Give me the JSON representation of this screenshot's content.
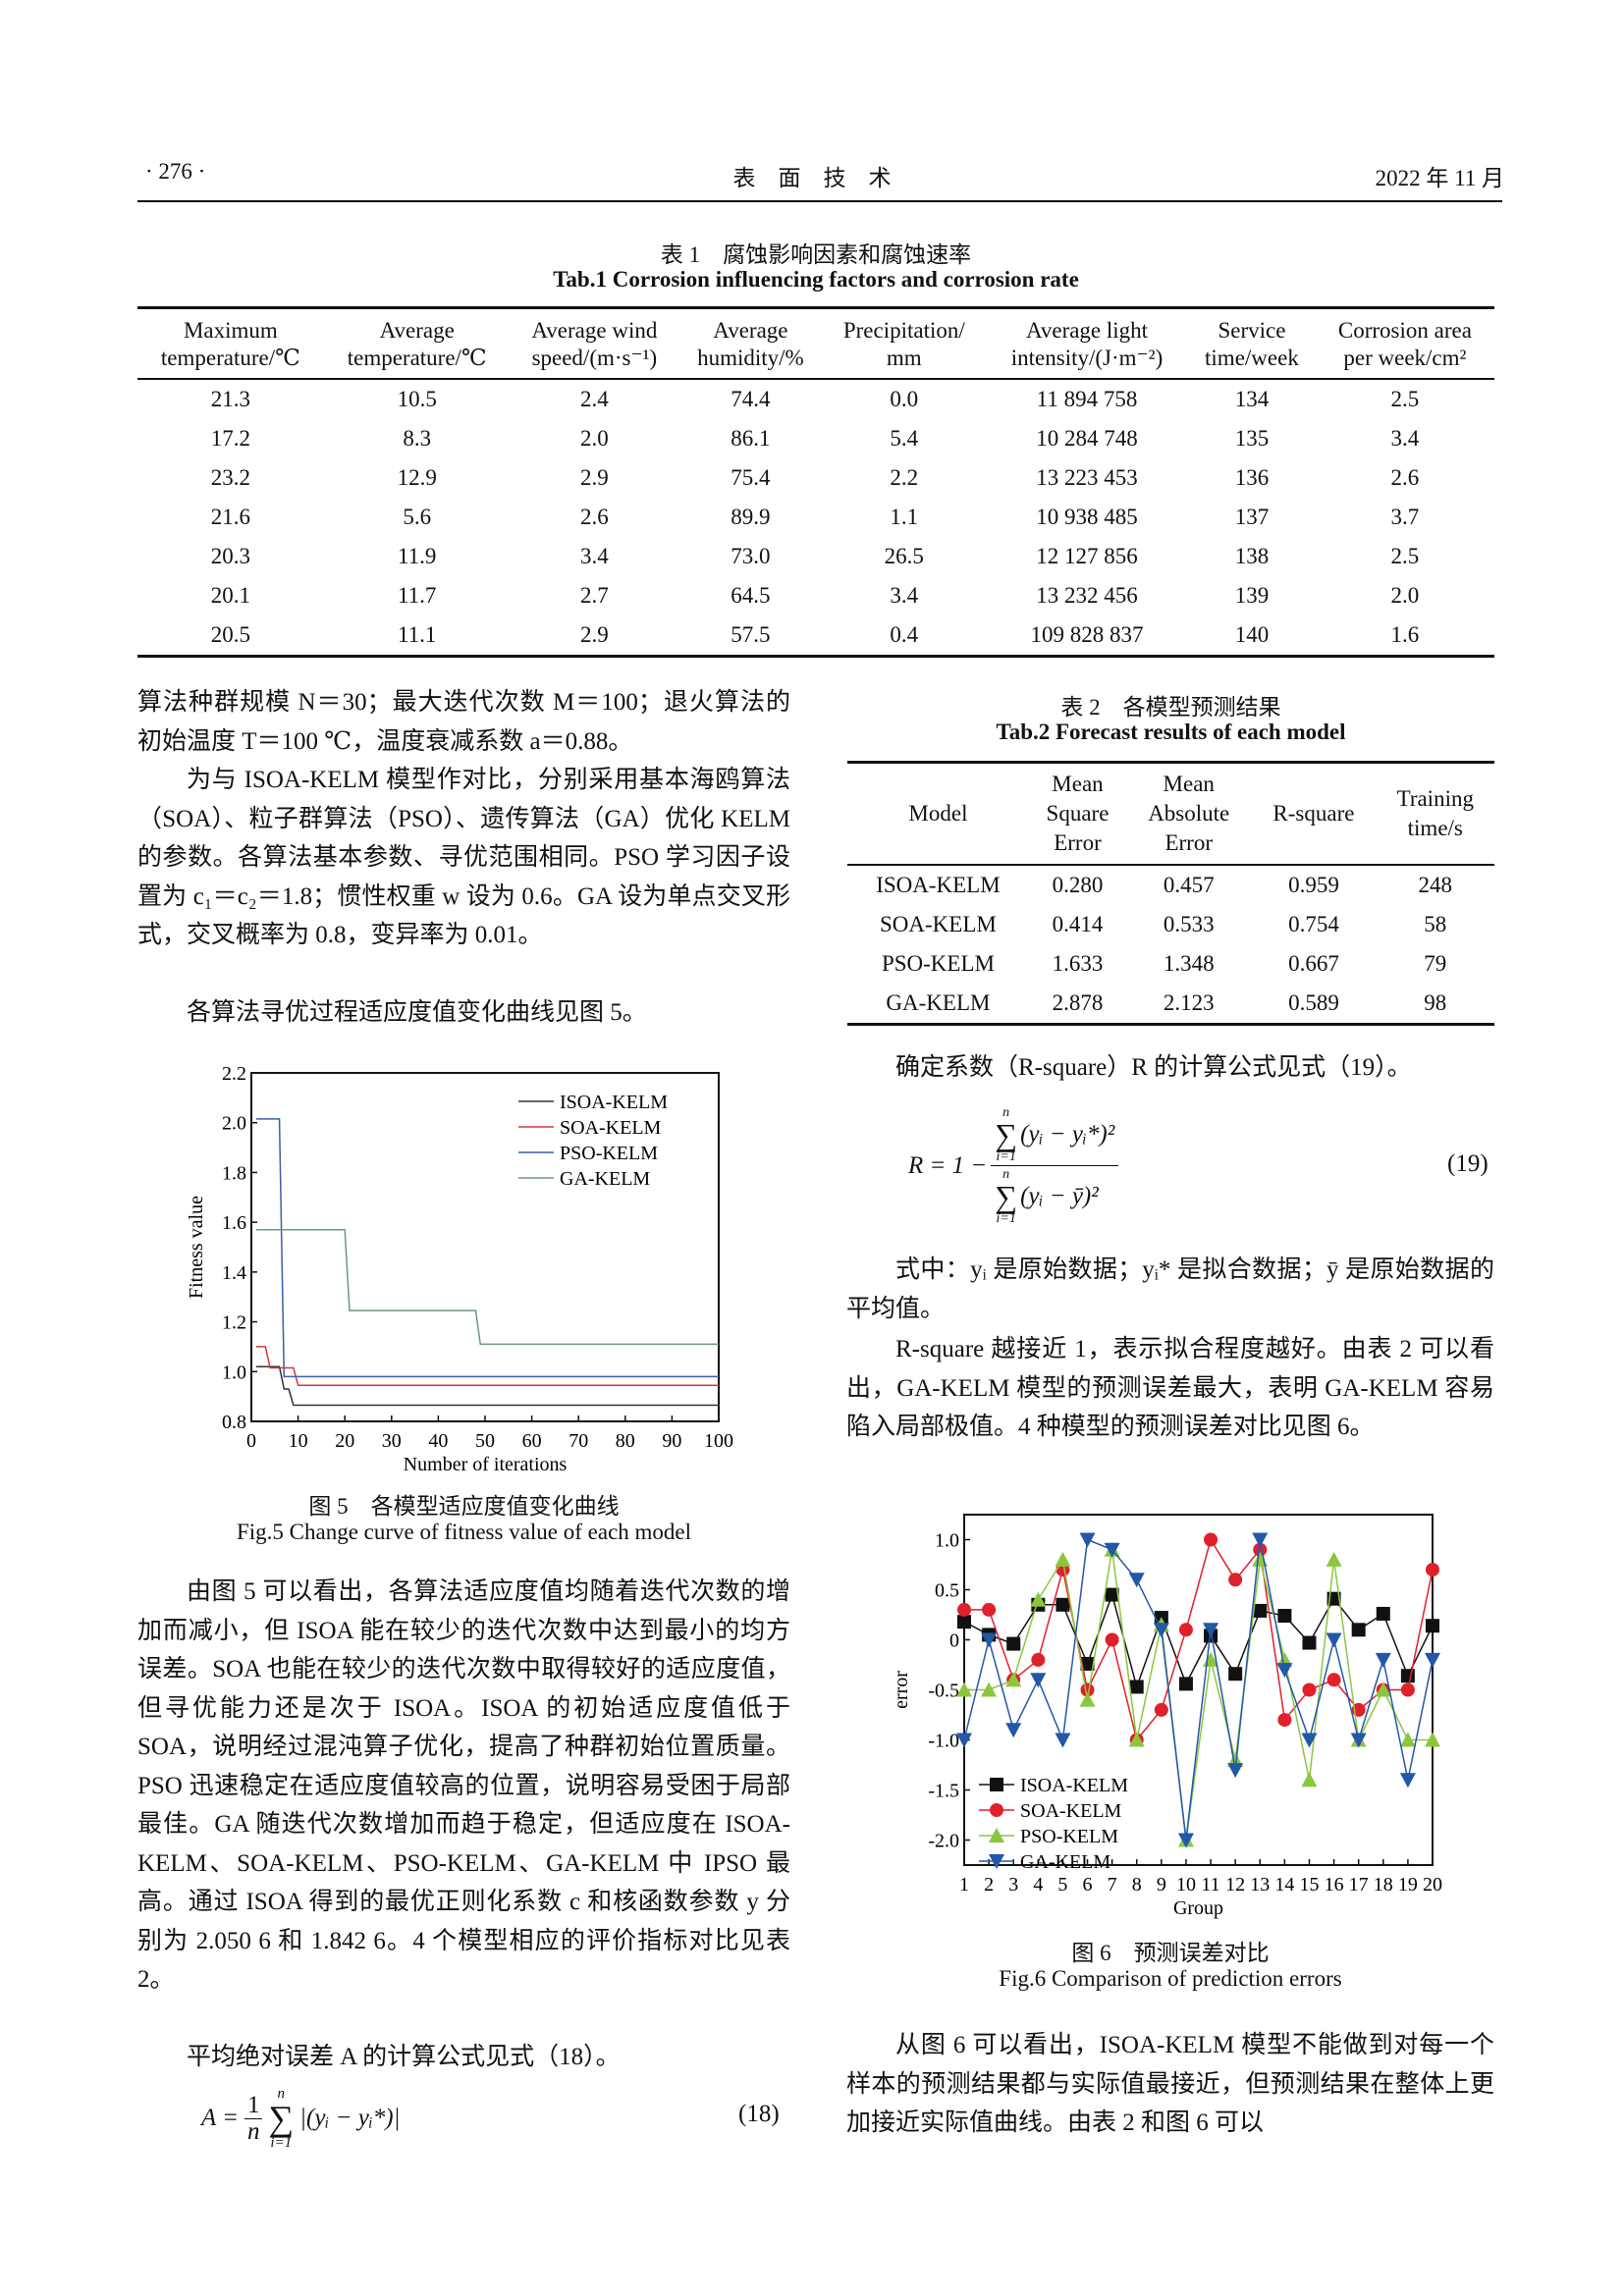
{
  "header": {
    "page_number": "· 276 ·",
    "journal": "表　面　技　术",
    "date": "2022 年 11 月"
  },
  "table1": {
    "caption_cn": "表 1　腐蚀影响因素和腐蚀速率",
    "caption_en": "Tab.1 Corrosion influencing factors and corrosion rate",
    "columns": [
      [
        "Maximum",
        "temperature/℃"
      ],
      [
        "Average",
        "temperature/℃"
      ],
      [
        "Average wind",
        "speed/(m·s⁻¹)"
      ],
      [
        "Average",
        "humidity/%"
      ],
      [
        "Precipitation/",
        "mm"
      ],
      [
        "Average light",
        "intensity/(J·m⁻²)"
      ],
      [
        "Service",
        "time/week"
      ],
      [
        "Corrosion area",
        "per week/cm²"
      ]
    ],
    "rows": [
      [
        "21.3",
        "10.5",
        "2.4",
        "74.4",
        "0.0",
        "11 894 758",
        "134",
        "2.5"
      ],
      [
        "17.2",
        "8.3",
        "2.0",
        "86.1",
        "5.4",
        "10 284 748",
        "135",
        "3.4"
      ],
      [
        "23.2",
        "12.9",
        "2.9",
        "75.4",
        "2.2",
        "13 223 453",
        "136",
        "2.6"
      ],
      [
        "21.6",
        "5.6",
        "2.6",
        "89.9",
        "1.1",
        "10 938 485",
        "137",
        "3.7"
      ],
      [
        "20.3",
        "11.9",
        "3.4",
        "73.0",
        "26.5",
        "12 127 856",
        "138",
        "2.5"
      ],
      [
        "20.1",
        "11.7",
        "2.7",
        "64.5",
        "3.4",
        "13 232 456",
        "139",
        "2.0"
      ],
      [
        "20.5",
        "11.1",
        "2.9",
        "57.5",
        "0.4",
        "109 828 837",
        "140",
        "1.6"
      ]
    ]
  },
  "left": {
    "p1": "算法种群规模 N＝30；最大迭代次数 M＝100；退火算法的初始温度 T＝100 ℃，温度衰减系数 a＝0.88。",
    "p2": "为与 ISOA-KELM 模型作对比，分别采用基本海鸥算法（SOA）、粒子群算法（PSO）、遗传算法（GA）优化 KELM 的参数。各算法基本参数、寻优范围相同。PSO 学习因子设置为 c₁＝c₂＝1.8；惯性权重 w 设为 0.6。GA 设为单点交叉形式，交叉概率为 0.8，变异率为 0.01。",
    "p3": "各算法寻优过程适应度值变化曲线见图 5。",
    "fig5_caption_cn": "图 5　各模型适应度值变化曲线",
    "fig5_caption_en": "Fig.5 Change curve of fitness value of each model",
    "p4": "由图 5 可以看出，各算法适应度值均随着迭代次数的增加而减小，但 ISOA 能在较少的迭代次数中达到最小的均方误差。SOA 也能在较少的迭代次数中取得较好的适应度值，但寻优能力还是次于 ISOA。ISOA 的初始适应度值低于 SOA，说明经过混沌算子优化，提高了种群初始位置质量。PSO 迅速稳定在适应度值较高的位置，说明容易受困于局部最佳。GA 随迭代次数增加而趋于稳定，但适应度在 ISOA-KELM、SOA-KELM、PSO-KELM、GA-KELM 中 IPSO 最高。通过 ISOA 得到的最优正则化系数 c 和核函数参数 y 分别为 2.050 6 和 1.842 6。4 个模型相应的评价指标对比见表 2。",
    "p5": "平均绝对误差 A 的计算公式见式（18）。",
    "eq18": {
      "lhs": "A =",
      "frac_num": "1",
      "frac_den": "n",
      "sum_top": "n",
      "sum_bot": "i=1",
      "body": "|(yᵢ − yᵢ*)|",
      "number": "(18)"
    }
  },
  "table2": {
    "caption_cn": "表 2　各模型预测结果",
    "caption_en": "Tab.2 Forecast results of each model",
    "columns": [
      [
        "Model"
      ],
      [
        "Mean",
        "Square",
        "Error"
      ],
      [
        "Mean",
        "Absolute",
        "Error"
      ],
      [
        "R-square"
      ],
      [
        "Training",
        "time/s"
      ]
    ],
    "rows": [
      [
        "ISOA-KELM",
        "0.280",
        "0.457",
        "0.959",
        "248"
      ],
      [
        "SOA-KELM",
        "0.414",
        "0.533",
        "0.754",
        "58"
      ],
      [
        "PSO-KELM",
        "1.633",
        "1.348",
        "0.667",
        "79"
      ],
      [
        "GA-KELM",
        "2.878",
        "2.123",
        "0.589",
        "98"
      ]
    ]
  },
  "right": {
    "p1": "确定系数（R-square）R 的计算公式见式（19）。",
    "eq19": {
      "lhs": "R = 1 −",
      "num": "(yᵢ − yᵢ*)²",
      "den": "(yᵢ − ȳ)²",
      "sum_top": "n",
      "sum_bot": "i=1",
      "number": "(19)"
    },
    "p2": "式中：yᵢ 是原始数据；yᵢ* 是拟合数据；ȳ 是原始数据的平均值。",
    "p3": "R-square 越接近 1，表示拟合程度越好。由表 2 可以看出，GA-KELM 模型的预测误差最大，表明 GA-KELM 容易陷入局部极值。4 种模型的预测误差对比见图 6。",
    "fig6_caption_cn": "图 6　预测误差对比",
    "fig6_caption_en": "Fig.6 Comparison of prediction errors",
    "p4": "从图 6 可以看出，ISOA-KELM 模型不能做到对每一个样本的预测结果都与实际值最接近，但预测结果在整体上更加接近实际值曲线。由表 2 和图 6 可以"
  },
  "chart_data": [
    {
      "type": "line",
      "xlabel": "Number of iterations",
      "ylabel": "Fitness value",
      "xlim": [
        0,
        100
      ],
      "ylim": [
        0.8,
        2.2
      ],
      "xticks": [
        0,
        10,
        20,
        30,
        40,
        50,
        60,
        70,
        80,
        90,
        100
      ],
      "yticks": [
        "0.8",
        "1.0",
        "1.2",
        "1.4",
        "1.6",
        "1.8",
        "2.0",
        "2.2"
      ],
      "legend": "top-right",
      "grid": false,
      "series": [
        {
          "name": "ISOA-KELM",
          "color": "#333333",
          "points": [
            [
              1,
              1.02
            ],
            [
              6,
              1.02
            ],
            [
              7,
              0.93
            ],
            [
              8,
              0.93
            ],
            [
              9,
              0.865
            ],
            [
              100,
              0.865
            ]
          ]
        },
        {
          "name": "SOA-KELM",
          "color": "#d9343a",
          "points": [
            [
              1,
              1.1
            ],
            [
              3,
              1.1
            ],
            [
              4,
              1.015
            ],
            [
              9,
              1.015
            ],
            [
              10,
              0.945
            ],
            [
              100,
              0.945
            ]
          ]
        },
        {
          "name": "PSO-KELM",
          "color": "#3b5ea8",
          "points": [
            [
              1,
              2.015
            ],
            [
              6,
              2.015
            ],
            [
              7,
              0.98
            ],
            [
              100,
              0.98
            ]
          ]
        },
        {
          "name": "GA-KELM",
          "color": "#6a9a78",
          "points": [
            [
              1,
              1.57
            ],
            [
              20,
              1.57
            ],
            [
              21,
              1.245
            ],
            [
              48,
              1.245
            ],
            [
              49,
              1.11
            ],
            [
              100,
              1.11
            ]
          ]
        }
      ]
    },
    {
      "type": "line",
      "xlabel": "Group",
      "ylabel": "error",
      "xlim": [
        1,
        20
      ],
      "ylim": [
        -2.25,
        1.25
      ],
      "xticks": [
        1,
        2,
        3,
        4,
        5,
        6,
        7,
        8,
        9,
        10,
        11,
        12,
        13,
        14,
        15,
        16,
        17,
        18,
        19,
        20
      ],
      "yticks": [
        "-2.0",
        "-1.5",
        "-1.0",
        "-0.5",
        "0",
        "0.5",
        "1.0"
      ],
      "legend": "bottom-left",
      "grid": false,
      "series": [
        {
          "name": "ISOA-KELM",
          "color": "#111111",
          "marker": "square",
          "values": [
            0.18,
            0.05,
            -0.04,
            0.35,
            0.35,
            -0.24,
            0.45,
            -0.47,
            0.22,
            -0.44,
            0.04,
            -0.34,
            0.29,
            0.24,
            -0.03,
            0.41,
            0.1,
            0.26,
            -0.36,
            0.14
          ]
        },
        {
          "name": "SOA-KELM",
          "color": "#e0202a",
          "marker": "circle",
          "values": [
            0.3,
            0.3,
            -0.4,
            -0.2,
            0.7,
            -0.5,
            0.0,
            -1.0,
            -0.7,
            0.1,
            1.0,
            0.6,
            0.9,
            -0.8,
            -0.5,
            -0.4,
            -0.7,
            -0.5,
            -0.5,
            0.7
          ]
        },
        {
          "name": "PSO-KELM",
          "color": "#8cc63f",
          "marker": "triangle-up",
          "values": [
            -0.5,
            -0.5,
            -0.4,
            0.4,
            0.8,
            -0.6,
            0.9,
            -1.0,
            0.15,
            -2.0,
            -0.2,
            -1.2,
            0.8,
            -0.2,
            -1.4,
            0.8,
            -1.0,
            -0.5,
            -1.0,
            -1.0
          ]
        },
        {
          "name": "GA-KELM",
          "color": "#2357a8",
          "marker": "triangle-down",
          "values": [
            -1.0,
            0.0,
            -0.9,
            -0.4,
            -1.0,
            1.0,
            0.9,
            0.6,
            0.1,
            -2.0,
            0.1,
            -1.3,
            1.0,
            -0.3,
            -1.0,
            0.0,
            -1.0,
            -0.2,
            -1.4,
            -0.2
          ]
        }
      ]
    }
  ]
}
